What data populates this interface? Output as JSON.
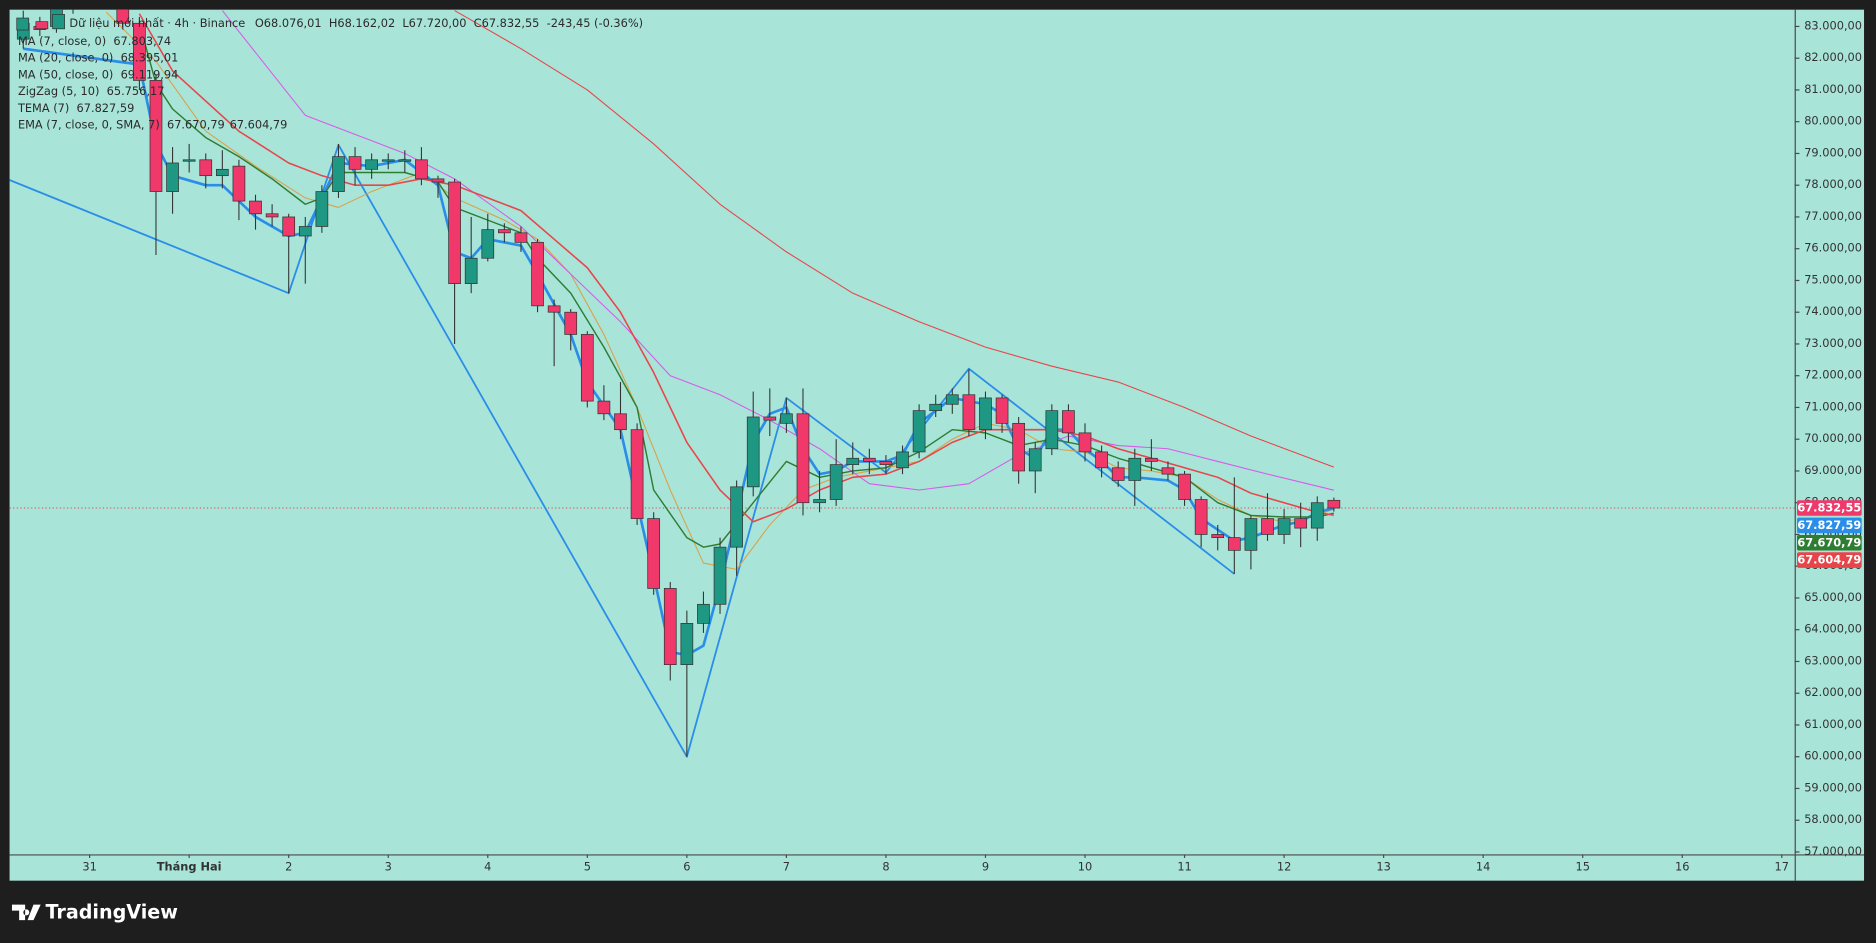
{
  "chart_data": {
    "type": "candlestick",
    "title": "Dữ liệu mới nhất · 4h · Binance",
    "ohlc_labels": [
      "O68.076,01",
      "H68.162,02",
      "L67.720,00",
      "C67.832,55"
    ],
    "change_label": "-243,45 (-0.36%)",
    "last_price": {
      "value": 67832.55,
      "label": "67.832,55"
    },
    "up_color": "#1e9783",
    "down_color": "#f0386b",
    "x": [
      -40,
      -36,
      -32,
      -28,
      -24,
      -20,
      -16,
      -12,
      -8,
      -4,
      0,
      4,
      8,
      12,
      16,
      20,
      24,
      28,
      32,
      36,
      40,
      44,
      48,
      52,
      56,
      60,
      64,
      68,
      72,
      76,
      80,
      84,
      88,
      92,
      96,
      100,
      104,
      108,
      112,
      116,
      120,
      124,
      128,
      132,
      136,
      140,
      144,
      148,
      152,
      156,
      160,
      164,
      168,
      172,
      176,
      180,
      184,
      188,
      192,
      196,
      200,
      204,
      208,
      212,
      216,
      220,
      224,
      228,
      232,
      236,
      240,
      244,
      248,
      252,
      256,
      260,
      264,
      268,
      272,
      276
    ],
    "open": [
      82600,
      83000,
      83000,
      83600,
      84200,
      84500,
      84000,
      83100,
      81300,
      77800,
      78800,
      78800,
      78300,
      78600,
      77500,
      77100,
      77000,
      76400,
      76700,
      77800,
      78900,
      78500,
      78800,
      78800,
      78800,
      78200,
      78100,
      74900,
      75700,
      76600,
      76500,
      76200,
      74200,
      74000,
      73300,
      71200,
      70800,
      70300,
      67500,
      65300,
      62900,
      64200,
      64800,
      66600,
      68500,
      70700,
      70500,
      70800,
      68000,
      68100,
      69200,
      69400,
      69300,
      69100,
      69600,
      70900,
      71100,
      71400,
      70300,
      71300,
      70500,
      69000,
      69700,
      70900,
      70200,
      69600,
      69100,
      68700,
      69400,
      69100,
      68900,
      68100,
      67000,
      66900,
      66500,
      67500,
      67000,
      67500,
      67200,
      68076.01
    ],
    "high": [
      83500,
      83300,
      84000,
      84600,
      84900,
      84800,
      84200,
      83300,
      81500,
      79200,
      79300,
      79000,
      79100,
      78800,
      77700,
      77400,
      77100,
      77000,
      78000,
      79300,
      79200,
      79000,
      79000,
      79100,
      79200,
      78300,
      78200,
      77000,
      77100,
      76800,
      76700,
      76300,
      74400,
      74100,
      73400,
      71700,
      71800,
      70500,
      67700,
      65500,
      64600,
      65200,
      66900,
      68700,
      71500,
      71600,
      71300,
      71600,
      69000,
      70000,
      69900,
      69700,
      69500,
      69800,
      71100,
      71400,
      71600,
      72200,
      71500,
      71400,
      70700,
      69900,
      71100,
      71100,
      70500,
      69800,
      69300,
      69700,
      70000,
      69300,
      69000,
      68200,
      67300,
      68800,
      67600,
      68300,
      67800,
      68000,
      68200,
      68162.02
    ],
    "low": [
      82300,
      82700,
      82800,
      83400,
      83900,
      83700,
      82900,
      81000,
      75800,
      77100,
      78400,
      77900,
      77900,
      76900,
      76600,
      76700,
      74600,
      74900,
      76500,
      77600,
      78000,
      78200,
      78500,
      78400,
      78000,
      77600,
      73000,
      74600,
      75600,
      76200,
      75900,
      74000,
      72300,
      72800,
      71000,
      70600,
      70000,
      67300,
      65100,
      62400,
      60000,
      63900,
      64500,
      65700,
      68200,
      70100,
      70200,
      67600,
      67700,
      67900,
      68900,
      68900,
      68900,
      68900,
      69400,
      70700,
      70800,
      70100,
      70000,
      70200,
      68600,
      68300,
      69500,
      69900,
      69300,
      68800,
      68500,
      67900,
      69000,
      68700,
      67900,
      66600,
      66500,
      65756,
      65900,
      66800,
      66700,
      66600,
      66800,
      67720.0
    ],
    "close": [
      83100,
      82900,
      83600,
      84200,
      84500,
      84000,
      83100,
      81300,
      77800,
      78700,
      78800,
      78300,
      78500,
      77500,
      77100,
      77000,
      76400,
      76700,
      77800,
      78900,
      78500,
      78800,
      78800,
      78800,
      78200,
      78100,
      74900,
      75700,
      76600,
      76500,
      76200,
      74200,
      74000,
      73300,
      71200,
      70800,
      70300,
      67500,
      65300,
      62900,
      64200,
      64800,
      66600,
      68500,
      70700,
      70600,
      70800,
      68000,
      68100,
      69200,
      69400,
      69300,
      69200,
      69600,
      70900,
      71100,
      71400,
      70300,
      71300,
      70500,
      69000,
      69700,
      70900,
      70200,
      69600,
      69100,
      68700,
      69400,
      69300,
      68900,
      68100,
      67000,
      66900,
      66500,
      67500,
      67000,
      67500,
      67200,
      68000,
      67832.55
    ],
    "indicators": [
      {
        "name": "MA (7, close, 0)",
        "lines": [
          {
            "label": "67.803,74",
            "color": "#d9a24a",
            "width": 0.9,
            "x": [
              -20,
              -8,
              4,
              16,
              28,
              36,
              44,
              56,
              64,
              76,
              84,
              92,
              100,
              108,
              116,
              124,
              132,
              140,
              148,
              156,
              168,
              176,
              184,
              192,
              200,
              208,
              216,
              224,
              232,
              240,
              248,
              256,
              264,
              272,
              276
            ],
            "values": [
              83450,
              81900,
              79700,
              78600,
              77600,
              77300,
              77800,
              78400,
              77600,
              76900,
              76300,
              75200,
              73300,
              71000,
              68400,
              66100,
              65900,
              67300,
              68400,
              68800,
              69100,
              69300,
              70000,
              70500,
              70300,
              69700,
              69600,
              69100,
              69000,
              68800,
              68100,
              67600,
              67400,
              67600,
              67803.74
            ]
          }
        ]
      },
      {
        "name": "MA (20, close, 0)",
        "lines": [
          {
            "label": "68.395,01",
            "color": "#d65ce8",
            "width": 0.9,
            "x": [
              8,
              28,
              52,
              64,
              80,
              92,
              104,
              116,
              128,
              140,
              152,
              164,
              176,
              188,
              200,
              212,
              224,
              236,
              248,
              260,
              276
            ],
            "values": [
              83500,
              80200,
              79000,
              78200,
              76700,
              75200,
              73700,
              72000,
              71400,
              70600,
              69700,
              68600,
              68400,
              68600,
              69500,
              70100,
              69800,
              69700,
              69300,
              68900,
              68395.01
            ]
          }
        ]
      },
      {
        "name": "MA (50, close, 0)",
        "lines": [
          {
            "label": "69.119,94",
            "color": "#e8454a",
            "width": 0.9,
            "x": [
              64,
              80,
              96,
              112,
              128,
              144,
              160,
              176,
              192,
              208,
              224,
              240,
              256,
              276
            ],
            "values": [
              83500,
              82300,
              81000,
              79300,
              77400,
              75900,
              74600,
              73700,
              72900,
              72300,
              71800,
              71000,
              70100,
              69119.94
            ]
          }
        ]
      },
      {
        "name": "ZigZag (5, 10)",
        "lines": [
          {
            "label": "65.756,17",
            "color": "#2a8de8",
            "width": 1.5,
            "x": [
              -44,
              24,
              36,
              120,
              144,
              168,
              188,
              252
            ],
            "values": [
              78200,
              74600,
              79270,
              60000,
              71300,
              68950,
              72220,
              65756.17
            ]
          }
        ]
      },
      {
        "name": "TEMA (7)",
        "lines": [
          {
            "label": "67.827,59",
            "color": "#2a8de8",
            "width": 2.2,
            "x": [
              -40,
              -12,
              -8,
              -4,
              4,
              8,
              16,
              24,
              28,
              32,
              36,
              44,
              52,
              60,
              64,
              68,
              72,
              80,
              84,
              92,
              96,
              104,
              108,
              112,
              116,
              120,
              124,
              128,
              132,
              136,
              140,
              144,
              148,
              152,
              156,
              160,
              168,
              172,
              176,
              184,
              188,
              192,
              196,
              200,
              204,
              208,
              212,
              216,
              220,
              224,
              228,
              236,
              240,
              244,
              252,
              256,
              260,
              264,
              268,
              272,
              276
            ],
            "values": [
              82300,
              81800,
              79300,
              78300,
              78000,
              78000,
              77000,
              76400,
              76500,
              77600,
              78700,
              78600,
              78800,
              78000,
              75900,
              75700,
              76300,
              76100,
              75200,
              73300,
              71800,
              70300,
              68000,
              65700,
              63300,
              63200,
              63500,
              65400,
              67600,
              69900,
              70800,
              71000,
              69700,
              68900,
              69000,
              69300,
              69300,
              69500,
              70500,
              71300,
              71200,
              71100,
              70800,
              69700,
              69400,
              70300,
              70300,
              69700,
              69300,
              68800,
              68800,
              68700,
              68400,
              67500,
              66800,
              66900,
              67100,
              67300,
              67400,
              67700,
              67827.59
            ]
          }
        ]
      },
      {
        "name": "EMA (7, close, 0, SMA, 7)",
        "lines": [
          {
            "label": "67.670,79",
            "color": "#2e7d32",
            "width": 1.2,
            "x": [
              -12,
              -8,
              -4,
              4,
              12,
              20,
              28,
              32,
              36,
              44,
              52,
              60,
              64,
              72,
              80,
              84,
              92,
              100,
              108,
              112,
              120,
              124,
              128,
              136,
              144,
              152,
              160,
              168,
              176,
              184,
              192,
              200,
              208,
              216,
              224,
              232,
              240,
              248,
              256,
              264,
              272,
              276
            ],
            "values": [
              83100,
              81200,
              80400,
              79500,
              78900,
              78200,
              77400,
              77600,
              78400,
              78400,
              78400,
              78100,
              77300,
              76900,
              76500,
              75700,
              74600,
              72900,
              71000,
              68400,
              66900,
              66600,
              66700,
              68000,
              69300,
              68800,
              69000,
              69100,
              69600,
              70300,
              70200,
              69800,
              70000,
              69800,
              69400,
              69100,
              68800,
              68000,
              67600,
              67550,
              67550,
              67670.79
            ]
          },
          {
            "label": "67.604,79",
            "color": "#e8454a",
            "width": 1.3,
            "x": [
              -12,
              -4,
              12,
              24,
              32,
              40,
              48,
              56,
              64,
              72,
              80,
              88,
              96,
              104,
              112,
              120,
              128,
              136,
              144,
              152,
              160,
              168,
              176,
              184,
              192,
              200,
              208,
              216,
              224,
              232,
              240,
              248,
              256,
              264,
              272,
              276
            ],
            "values": [
              83400,
              81600,
              79700,
              78700,
              78300,
              78000,
              78000,
              78200,
              78000,
              77600,
              77200,
              76300,
              75400,
              74000,
              72100,
              69900,
              68400,
              67400,
              67800,
              68400,
              68800,
              68900,
              69300,
              69900,
              70300,
              70300,
              70300,
              70100,
              69700,
              69400,
              69100,
              68800,
              68300,
              68000,
              67700,
              67604.79
            ]
          }
        ]
      }
    ],
    "xlim": [
      -43.3,
      387.1
    ],
    "ylim": [
      56925,
      83528
    ],
    "xticks": [
      {
        "value": -24,
        "label": "31"
      },
      {
        "value": 0,
        "label": "Tháng Hai"
      },
      {
        "value": 24,
        "label": "2"
      },
      {
        "value": 48,
        "label": "3"
      },
      {
        "value": 72,
        "label": "4"
      },
      {
        "value": 96,
        "label": "5"
      },
      {
        "value": 120,
        "label": "6"
      },
      {
        "value": 144,
        "label": "7"
      },
      {
        "value": 168,
        "label": "8"
      },
      {
        "value": 192,
        "label": "9"
      },
      {
        "value": 216,
        "label": "10"
      },
      {
        "value": 240,
        "label": "11"
      },
      {
        "value": 264,
        "label": "12"
      },
      {
        "value": 288,
        "label": "13"
      },
      {
        "value": 312,
        "label": "14"
      },
      {
        "value": 336,
        "label": "15"
      },
      {
        "value": 360,
        "label": "16"
      },
      {
        "value": 384,
        "label": "17"
      }
    ],
    "yticks": [
      {
        "value": 57000,
        "label": "57.000,00"
      },
      {
        "value": 58000,
        "label": "58.000,00"
      },
      {
        "value": 59000,
        "label": "59.000,00"
      },
      {
        "value": 60000,
        "label": "60.000,00"
      },
      {
        "value": 61000,
        "label": "61.000,00"
      },
      {
        "value": 62000,
        "label": "62.000,00"
      },
      {
        "value": 63000,
        "label": "63.000,00"
      },
      {
        "value": 64000,
        "label": "64.000,00"
      },
      {
        "value": 65000,
        "label": "65.000,00"
      },
      {
        "value": 66000,
        "label": "66.000,00"
      },
      {
        "value": 67000,
        "label": "67.000,00"
      },
      {
        "value": 68000,
        "label": "68.000,00"
      },
      {
        "value": 69000,
        "label": "69.000,00"
      },
      {
        "value": 70000,
        "label": "70.000,00"
      },
      {
        "value": 71000,
        "label": "71.000,00"
      },
      {
        "value": 72000,
        "label": "72.000,00"
      },
      {
        "value": 73000,
        "label": "73.000,00"
      },
      {
        "value": 74000,
        "label": "74.000,00"
      },
      {
        "value": 75000,
        "label": "75.000,00"
      },
      {
        "value": 76000,
        "label": "76.000,00"
      },
      {
        "value": 77000,
        "label": "77.000,00"
      },
      {
        "value": 78000,
        "label": "78.000,00"
      },
      {
        "value": 79000,
        "label": "79.000,00"
      },
      {
        "value": 80000,
        "label": "80.000,00"
      },
      {
        "value": 81000,
        "label": "81.000,00"
      },
      {
        "value": 82000,
        "label": "82.000,00"
      },
      {
        "value": 83000,
        "label": "83.000,00"
      }
    ],
    "grid": false
  },
  "footer": {
    "brand": "TradingView"
  }
}
